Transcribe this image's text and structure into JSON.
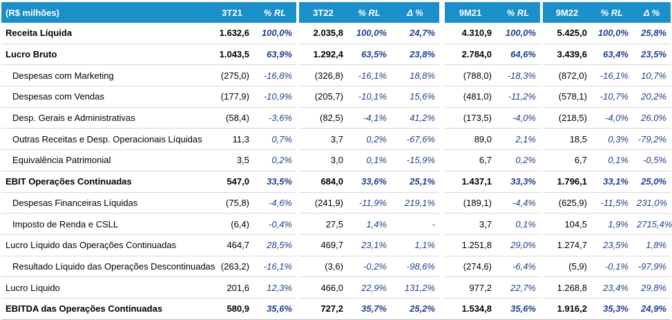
{
  "header": {
    "label": "(R$ milhões)",
    "c1": "3T21",
    "c2": "% RL",
    "c3": "3T22",
    "c4": "% RL",
    "c5": "Δ %",
    "c6": "9M21",
    "c7": "% RL",
    "c8": "9M22",
    "c9": "% RL",
    "c10": "Δ %"
  },
  "rows": [
    {
      "label": "Receita Líquida",
      "v": [
        "1.632,6",
        "100,0%",
        "2.035,8",
        "100,0%",
        "24,7%",
        "4.310,9",
        "100,0%",
        "5.425,0",
        "100,0%",
        "25,8%"
      ]
    },
    {
      "label": "Lucro Bruto",
      "v": [
        "1.043,5",
        "63,9%",
        "1.292,4",
        "63,5%",
        "23,8%",
        "2.784,0",
        "64,6%",
        "3.439,6",
        "63,4%",
        "23,5%"
      ]
    },
    {
      "label": "Despesas com Marketing",
      "v": [
        "(275,0)",
        "-16,8%",
        "(326,8)",
        "-16,1%",
        "18,8%",
        "(788,0)",
        "-18,3%",
        "(872,0)",
        "-16,1%",
        "10,7%"
      ]
    },
    {
      "label": "Despesas com Vendas",
      "v": [
        "(177,9)",
        "-10,9%",
        "(205,7)",
        "-10,1%",
        "15,6%",
        "(481,0)",
        "-11,2%",
        "(578,1)",
        "-10,7%",
        "20,2%"
      ]
    },
    {
      "label": "Desp. Gerais e Administrativas",
      "v": [
        "(58,4)",
        "-3,6%",
        "(82,5)",
        "-4,1%",
        "41,2%",
        "(173,5)",
        "-4,0%",
        "(218,5)",
        "-4,0%",
        "26,0%"
      ]
    },
    {
      "label": "Outras Receitas e Desp. Operacionais Líquidas",
      "v": [
        "11,3",
        "0,7%",
        "3,7",
        "0,2%",
        "-67,6%",
        "89,0",
        "2,1%",
        "18,5",
        "0,3%",
        "-79,2%"
      ]
    },
    {
      "label": "Equivalência Patrimonial",
      "v": [
        "3,5",
        "0,2%",
        "3,0",
        "0,1%",
        "-15,9%",
        "6,7",
        "0,2%",
        "6,7",
        "0,1%",
        "-0,5%"
      ]
    },
    {
      "label": "EBIT Operações Continuadas",
      "v": [
        "547,0",
        "33,5%",
        "684,0",
        "33,6%",
        "25,1%",
        "1.437,1",
        "33,3%",
        "1.796,1",
        "33,1%",
        "25,0%"
      ]
    },
    {
      "label": "Despesas Financeiras Líquidas",
      "v": [
        "(75,8)",
        "-4,6%",
        "(241,9)",
        "-11,9%",
        "219,1%",
        "(189,1)",
        "-4,4%",
        "(625,9)",
        "-11,5%",
        "231,0%"
      ]
    },
    {
      "label": "Imposto de Renda e CSLL",
      "v": [
        "(6,4)",
        "-0,4%",
        "27,5",
        "1,4%",
        "-",
        "3,7",
        "0,1%",
        "104,5",
        "1,9%",
        "2715,4%"
      ]
    },
    {
      "label": "Lucro Líquido das Operações Continuadas",
      "v": [
        "464,7",
        "28,5%",
        "469,7",
        "23,1%",
        "1,1%",
        "1.251,8",
        "29,0%",
        "1.274,7",
        "23,5%",
        "1,8%"
      ]
    },
    {
      "label": "Resultado Líquido das Operações Descontinuadas",
      "v": [
        "(263,2)",
        "-16,1%",
        "(3,6)",
        "-0,2%",
        "-98,6%",
        "(274,6)",
        "-6,4%",
        "(5,9)",
        "-0,1%",
        "-97,9%"
      ]
    },
    {
      "label": "Lucro Líquido",
      "v": [
        "201,6",
        "12,3%",
        "466,0",
        "22,9%",
        "131,2%",
        "977,2",
        "22,7%",
        "1.268,8",
        "23,4%",
        "29,8%"
      ]
    },
    {
      "label": "EBITDA das Operações Continuadas",
      "v": [
        "580,9",
        "35,6%",
        "727,2",
        "35,7%",
        "25,2%",
        "1.534,8",
        "35,6%",
        "1.916,2",
        "35,3%",
        "24,9%"
      ]
    }
  ]
}
